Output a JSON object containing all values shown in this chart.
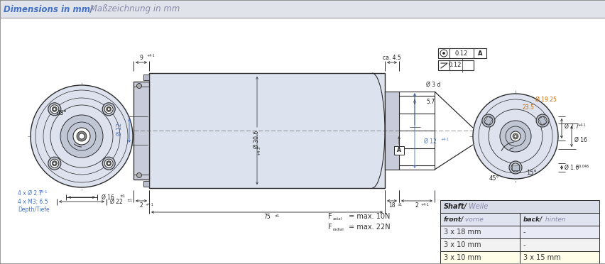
{
  "title_blue": "Dimensions in mm/",
  "title_gray": " Maßzeichnung in mm",
  "bg_header": "#e8eaed",
  "bg_main": "#ffffff",
  "body_fill": "#dce2ee",
  "flange_fill": "#c8ccda",
  "circle_fill": "#dce2ee",
  "line_color": "#2a2a2a",
  "blue_color": "#4472c4",
  "gray_color": "#8888aa",
  "orange_color": "#cc6600",
  "table_header_bg": "#d8dce8",
  "table_colhdr_bg": "#e0e4f0",
  "table_row1_bg": "#e8ebf5",
  "table_row2_bg": "#f2f2f2",
  "table_row3_bg": "#fffde8",
  "shaft_header": "Shaft/ Welle",
  "col_front": "front/ vorne",
  "col_back": "back/ hinten",
  "row1_front": "3 x 18 mm",
  "row1_back": "-",
  "row2_front": "3 x 10 mm",
  "row2_back": "-",
  "row3_front": "3 x 10 mm",
  "row3_back": "3 x 15 mm",
  "f_axial_val": " = max. 10N",
  "f_radial_val": " = max. 22N",
  "dim_9": "9",
  "dim_9_sup": "+4·1",
  "dim_co45": "ca. 4.5",
  "dim_30645": "Ø 30.6",
  "dim_30645_sup": "+4⋅3",
  "dim_12_front": "Ø 12",
  "dim_12_sup": "+4⋅1",
  "dim_16_front": "Ø 16",
  "dim_16_sup": "±1",
  "dim_22": "Ø 22",
  "dim_22_sup": "±1",
  "dim_2_left": "2",
  "dim_2_sup": "+4⋅1",
  "dim_75": "75",
  "dim_75_sup": "±1",
  "dim_18": "18",
  "dim_18_sup": "±1",
  "dim_2_right": "2",
  "dim_3d": "Ø 3 d",
  "dim_57": "5.7",
  "dim_12_right": "Ø 12",
  "dim_1925": "Ø 19.25",
  "dim_235": "23.5",
  "dim_27": "Ø 2.7",
  "dim_27_sup": "+4⋅1",
  "dim_16_right": "Ø 16",
  "dim_14": "Ø 1.6",
  "dim_14_sup": "+0.046\n+0.028",
  "dim_012": "0.12",
  "dim_012b": "0.12",
  "angle_45_left": "45°",
  "angle_45_right": "45°",
  "angle_15_right": "15°",
  "holes_text": "4 x Ø 2.7",
  "holes_sup": "+4⋅1",
  "m3_text": "4 x M3; 6.5",
  "depth_text": "Depth/Tiefe"
}
